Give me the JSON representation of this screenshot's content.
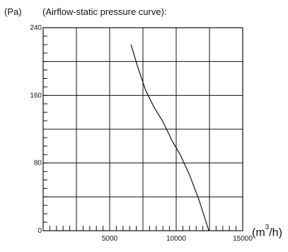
{
  "chart_data": {
    "type": "line",
    "title": "(Airflow-static pressure curve):",
    "ylabel": "(Pa)",
    "xlabel_prefix": "(m",
    "xlabel_exp": "3",
    "xlabel_suffix": "/h)",
    "xlim": [
      0,
      15000
    ],
    "ylim": [
      0,
      240
    ],
    "x_ticks": [
      "5000",
      "10000",
      "15000"
    ],
    "y_ticks": [
      "240",
      "160",
      "80",
      "0"
    ],
    "grid": true,
    "series": [
      {
        "color": "#111111",
        "x": [
          6600,
          7100,
          7700,
          8300,
          9000,
          9700,
          10300,
          11000,
          11700,
          12450
        ],
        "y": [
          220,
          194,
          166,
          147,
          129,
          106,
          90,
          66,
          37,
          0
        ]
      }
    ]
  }
}
